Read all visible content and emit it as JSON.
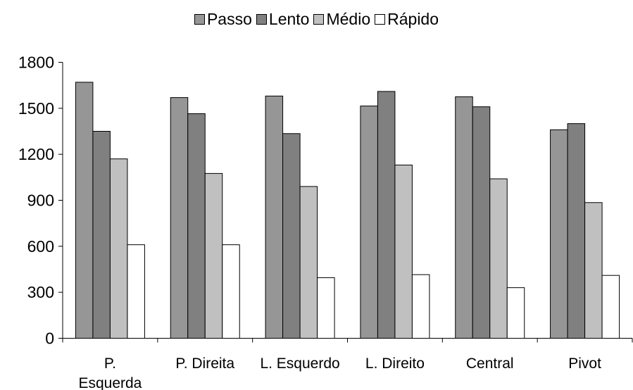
{
  "chart_data": {
    "type": "bar",
    "categories": [
      "P.\nEsquerda",
      "P. Direita",
      "L. Esquerdo",
      "L. Direito",
      "Central",
      "Pivot"
    ],
    "series": [
      {
        "name": "Passo",
        "color": "#969696",
        "values": [
          1670,
          1570,
          1580,
          1515,
          1575,
          1360
        ]
      },
      {
        "name": "Lento",
        "color": "#808080",
        "values": [
          1350,
          1465,
          1335,
          1610,
          1510,
          1400
        ]
      },
      {
        "name": "Médio",
        "color": "#c0c0c0",
        "values": [
          1170,
          1075,
          990,
          1130,
          1040,
          885
        ]
      },
      {
        "name": "Rápido",
        "color": "#ffffff",
        "values": [
          610,
          610,
          395,
          415,
          330,
          410
        ]
      }
    ],
    "yticks": [
      "0",
      "300",
      "600",
      "900",
      "1200",
      "1500",
      "1800"
    ],
    "ylim": [
      0,
      1800
    ],
    "legend_position": "top"
  }
}
